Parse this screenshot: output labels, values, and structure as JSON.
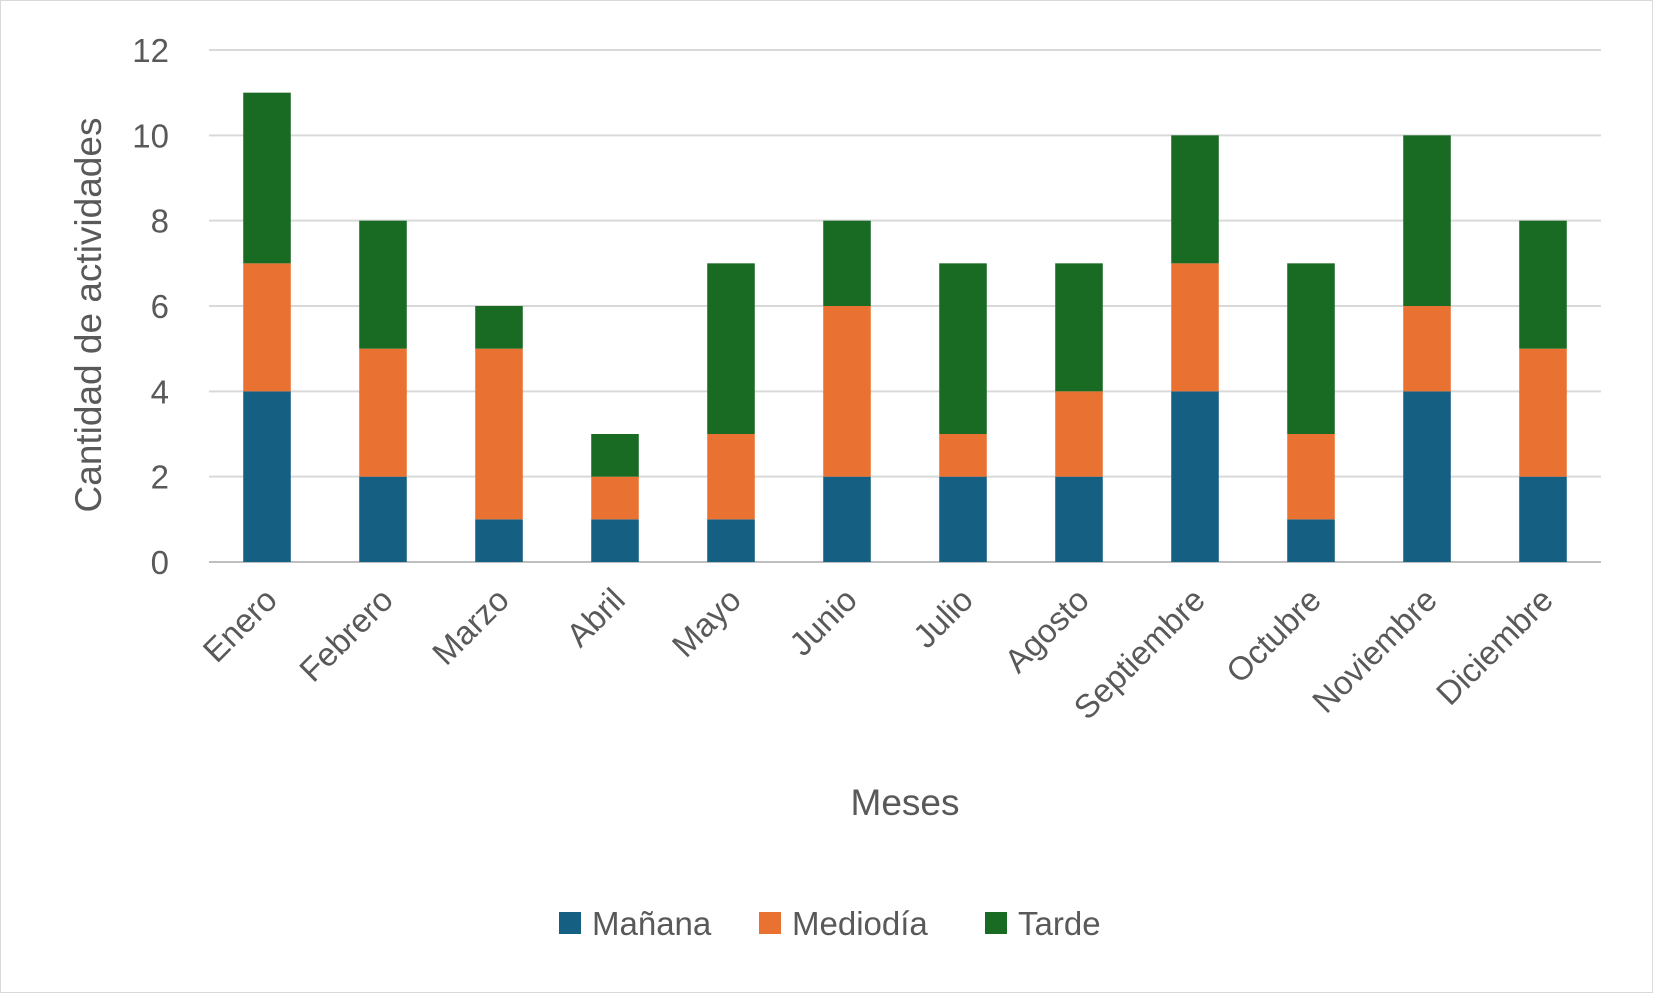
{
  "chart_data": {
    "type": "bar",
    "stacked": true,
    "title": "",
    "xlabel": "Meses",
    "ylabel": "Cantidad de actividades",
    "ylim": [
      0,
      12
    ],
    "yticks": [
      "0",
      "2",
      "4",
      "6",
      "8",
      "10",
      "12"
    ],
    "grid": true,
    "legend_position": "bottom",
    "categories": [
      "Enero",
      "Febrero",
      "Marzo",
      "Abril",
      "Mayo",
      "Junio",
      "Julio",
      "Agosto",
      "Septiembre",
      "Octubre",
      "Noviembre",
      "Diciembre"
    ],
    "series": [
      {
        "name": "Mañana",
        "color": "#156082",
        "values": [
          4,
          2,
          1,
          1,
          1,
          2,
          2,
          2,
          4,
          1,
          4,
          2
        ]
      },
      {
        "name": "Mediodía",
        "color": "#e97132",
        "values": [
          3,
          3,
          4,
          1,
          2,
          4,
          1,
          2,
          3,
          2,
          2,
          3
        ]
      },
      {
        "name": "Tarde",
        "color": "#196b24",
        "values": [
          4,
          3,
          1,
          1,
          4,
          2,
          4,
          3,
          3,
          4,
          4,
          3
        ]
      }
    ]
  }
}
